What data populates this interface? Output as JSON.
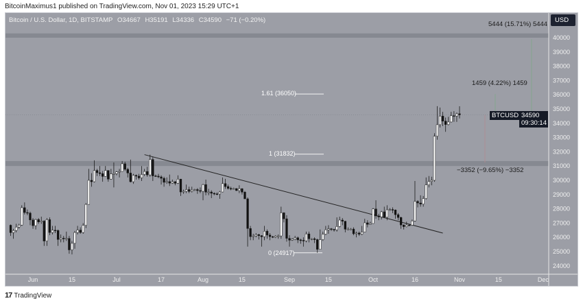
{
  "header": {
    "published": "BitcoinMaximus1 published on TradingView.com, Nov 01, 2023 15:29 UTC+1"
  },
  "legend": {
    "symbol": "Bitcoin / U.S. Dollar, 1D, BITSTAMP",
    "o": "O34667",
    "h": "H35191",
    "l": "L34336",
    "c": "C34590",
    "change": "−71 (−0.20%)"
  },
  "currency": "USD",
  "price_tag": {
    "symbol": "BTCUSD",
    "price": "34590",
    "countdown": "09:30:14"
  },
  "footer": {
    "brand": "TradingView"
  },
  "annotations": {
    "fib": [
      {
        "label": "1.61 (36050)",
        "value": 36050
      },
      {
        "label": "1 (31832)",
        "value": 31832
      },
      {
        "label": "0 (24917)",
        "value": 24917
      }
    ],
    "measure_up_1": "5444 (15.71%) 5444",
    "measure_up_2": "1459 (4.22%) 1459",
    "measure_down": "−3352 (−9.65%) −3352",
    "resistance_zones": [
      [
        40000,
        40300
      ],
      [
        31000,
        31350
      ]
    ],
    "trendline": [
      [
        "Jul 11",
        31800
      ],
      [
        "Oct 26",
        26300
      ]
    ]
  },
  "colors": {
    "background": "#9c9ea6",
    "up": "#ffffff",
    "down": "#111111",
    "zone": "#7f8189"
  },
  "chart_data": {
    "type": "candlestick",
    "title": "Bitcoin / U.S. Dollar, 1D, BITSTAMP",
    "ylim": [
      23500,
      41500
    ],
    "yticks": [
      24000,
      25000,
      26000,
      27000,
      28000,
      29000,
      30000,
      31000,
      32000,
      33000,
      34000,
      35000,
      36000,
      37000,
      38000,
      39000,
      40000
    ],
    "xticks": [
      [
        "Jun",
        "Jun 1"
      ],
      [
        "15",
        "Jun 15"
      ],
      [
        "Jul",
        "Jul 1"
      ],
      [
        "17",
        "Jul 17"
      ],
      [
        "Aug",
        "Aug 1"
      ],
      [
        "15",
        "Aug 15"
      ],
      [
        "Sep",
        "Sep 1"
      ],
      [
        "15",
        "Sep 15"
      ],
      [
        "Oct",
        "Oct 1"
      ],
      [
        "16",
        "Oct 16"
      ],
      [
        "Nov",
        "Nov 1"
      ],
      [
        "15",
        "Nov 15"
      ],
      [
        "Dec",
        "Dec 1"
      ]
    ],
    "candles": [
      [
        "May 24",
        26850,
        26900,
        26100,
        26330
      ],
      [
        "May 25",
        26330,
        26600,
        25900,
        26480
      ],
      [
        "May 26",
        26480,
        26950,
        26350,
        26720
      ],
      [
        "May 27",
        26720,
        26950,
        26600,
        26860
      ],
      [
        "May 28",
        26860,
        28250,
        26800,
        28080
      ],
      [
        "May 29",
        28080,
        28450,
        27600,
        27740
      ],
      [
        "May 30",
        27740,
        27950,
        27550,
        27700
      ],
      [
        "May 31",
        27700,
        27800,
        26850,
        27220
      ],
      [
        "Jun 1",
        27220,
        27350,
        26600,
        26820
      ],
      [
        "Jun 2",
        26820,
        27300,
        26550,
        27250
      ],
      [
        "Jun 3",
        27250,
        27350,
        26950,
        27080
      ],
      [
        "Jun 4",
        27080,
        27450,
        26950,
        27140
      ],
      [
        "Jun 5",
        27140,
        27200,
        25400,
        25740
      ],
      [
        "Jun 6",
        25740,
        27350,
        25400,
        27240
      ],
      [
        "Jun 7",
        27240,
        27400,
        26150,
        26340
      ],
      [
        "Jun 8",
        26340,
        26800,
        26200,
        26500
      ],
      [
        "Jun 9",
        26500,
        26800,
        26300,
        26480
      ],
      [
        "Jun 10",
        26480,
        26550,
        25400,
        25850
      ],
      [
        "Jun 11",
        25850,
        26200,
        25650,
        25940
      ],
      [
        "Jun 12",
        25940,
        26100,
        25650,
        25900
      ],
      [
        "Jun 13",
        25900,
        26400,
        25750,
        25920
      ],
      [
        "Jun 14",
        25920,
        26100,
        24850,
        25120
      ],
      [
        "Jun 15",
        25120,
        25750,
        24800,
        25580
      ],
      [
        "Jun 16",
        25580,
        26450,
        25200,
        26340
      ],
      [
        "Jun 17",
        26340,
        26800,
        26200,
        26510
      ],
      [
        "Jun 18",
        26510,
        26700,
        26250,
        26340
      ],
      [
        "Jun 19",
        26340,
        27000,
        26250,
        26840
      ],
      [
        "Jun 20",
        26840,
        28400,
        26650,
        28310
      ],
      [
        "Jun 21",
        28310,
        30800,
        28300,
        30000
      ],
      [
        "Jun 22",
        30000,
        30500,
        29550,
        29900
      ],
      [
        "Jun 23",
        29900,
        31400,
        29850,
        30690
      ],
      [
        "Jun 24",
        30690,
        30800,
        30300,
        30530
      ],
      [
        "Jun 25",
        30530,
        31000,
        30300,
        30470
      ],
      [
        "Jun 26",
        30470,
        30650,
        29900,
        30270
      ],
      [
        "Jun 27",
        30270,
        31000,
        30250,
        30690
      ],
      [
        "Jun 28",
        30690,
        30700,
        29900,
        30080
      ],
      [
        "Jun 29",
        30080,
        30800,
        30050,
        30450
      ],
      [
        "Jun 30",
        30450,
        31250,
        29500,
        30470
      ],
      [
        "Jul 1",
        30470,
        30650,
        30350,
        30590
      ],
      [
        "Jul 2",
        30590,
        30800,
        30200,
        30620
      ],
      [
        "Jul 3",
        30620,
        31350,
        30600,
        31160
      ],
      [
        "Jul 4",
        31160,
        31300,
        30650,
        30770
      ],
      [
        "Jul 5",
        30770,
        30880,
        30200,
        30510
      ],
      [
        "Jul 6",
        30510,
        31450,
        29850,
        29900
      ],
      [
        "Jul 7",
        29900,
        30450,
        29750,
        30350
      ],
      [
        "Jul 8",
        30350,
        30400,
        30050,
        30290
      ],
      [
        "Jul 9",
        30290,
        30450,
        30050,
        30170
      ],
      [
        "Jul 10",
        30170,
        31000,
        29950,
        30410
      ],
      [
        "Jul 11",
        30410,
        30800,
        30300,
        30620
      ],
      [
        "Jul 12",
        30620,
        30950,
        30250,
        30380
      ],
      [
        "Jul 13",
        30380,
        31800,
        30250,
        31460
      ],
      [
        "Jul 14",
        31460,
        31650,
        29950,
        30310
      ],
      [
        "Jul 15",
        30310,
        30400,
        30250,
        30290
      ],
      [
        "Jul 16",
        30290,
        30450,
        30150,
        30240
      ],
      [
        "Jul 17",
        30240,
        30350,
        29700,
        30140
      ],
      [
        "Jul 18",
        30140,
        30250,
        29550,
        29860
      ],
      [
        "Jul 19",
        29860,
        30200,
        29750,
        29910
      ],
      [
        "Jul 20",
        29910,
        30400,
        29600,
        29800
      ],
      [
        "Jul 21",
        29800,
        30050,
        29750,
        29900
      ],
      [
        "Jul 22",
        29900,
        29950,
        29650,
        29790
      ],
      [
        "Jul 23",
        29790,
        30350,
        29750,
        30080
      ],
      [
        "Jul 24",
        30080,
        30100,
        28900,
        29180
      ],
      [
        "Jul 25",
        29180,
        29350,
        29050,
        29230
      ],
      [
        "Jul 26",
        29230,
        29700,
        29100,
        29350
      ],
      [
        "Jul 27",
        29350,
        29550,
        29100,
        29220
      ],
      [
        "Jul 28",
        29220,
        29550,
        29150,
        29310
      ],
      [
        "Jul 29",
        29310,
        29400,
        29250,
        29350
      ],
      [
        "Jul 30",
        29350,
        29450,
        29050,
        29280
      ],
      [
        "Jul 31",
        29280,
        29500,
        29100,
        29230
      ],
      [
        "Aug 1",
        29230,
        29750,
        28600,
        29700
      ],
      [
        "Aug 2",
        29700,
        30050,
        28950,
        29170
      ],
      [
        "Aug 3",
        29170,
        29400,
        28950,
        29180
      ],
      [
        "Aug 4",
        29180,
        29300,
        28750,
        29090
      ],
      [
        "Aug 5",
        29090,
        29150,
        28950,
        29050
      ],
      [
        "Aug 6",
        29050,
        29150,
        28950,
        29040
      ],
      [
        "Aug 7",
        29040,
        29250,
        28700,
        29180
      ],
      [
        "Aug 8",
        29180,
        30200,
        29150,
        29770
      ],
      [
        "Aug 9",
        29770,
        30100,
        29400,
        29560
      ],
      [
        "Aug 10",
        29560,
        29700,
        29350,
        29430
      ],
      [
        "Aug 11",
        29430,
        29550,
        29300,
        29400
      ],
      [
        "Aug 12",
        29400,
        29480,
        29350,
        29420
      ],
      [
        "Aug 13",
        29420,
        29450,
        29250,
        29280
      ],
      [
        "Aug 14",
        29280,
        29650,
        29100,
        29410
      ],
      [
        "Aug 15",
        29410,
        29450,
        29000,
        29170
      ],
      [
        "Aug 16",
        29170,
        29250,
        28700,
        28700
      ],
      [
        "Aug 17",
        28700,
        28800,
        25350,
        26620
      ],
      [
        "Aug 18",
        26620,
        26800,
        25800,
        26050
      ],
      [
        "Aug 19",
        26050,
        26250,
        25800,
        26100
      ],
      [
        "Aug 20",
        26100,
        26300,
        26000,
        26190
      ],
      [
        "Aug 21",
        26190,
        26250,
        25850,
        26120
      ],
      [
        "Aug 22",
        26120,
        26150,
        25350,
        26040
      ],
      [
        "Aug 23",
        26040,
        26800,
        25800,
        26430
      ],
      [
        "Aug 24",
        26430,
        26550,
        25900,
        26160
      ],
      [
        "Aug 25",
        26160,
        26300,
        25800,
        26050
      ],
      [
        "Aug 26",
        26050,
        26100,
        25950,
        26010
      ],
      [
        "Aug 27",
        26010,
        26150,
        25950,
        26090
      ],
      [
        "Aug 28",
        26090,
        26200,
        25900,
        26100
      ],
      [
        "Aug 29",
        26100,
        28150,
        25900,
        27720
      ],
      [
        "Aug 30",
        27720,
        27750,
        27050,
        27300
      ],
      [
        "Aug 31",
        27300,
        27550,
        25700,
        25930
      ],
      [
        "Sep 1",
        25930,
        26150,
        25350,
        25800
      ],
      [
        "Sep 2",
        25800,
        25950,
        25750,
        25870
      ],
      [
        "Sep 3",
        25870,
        26100,
        25800,
        25970
      ],
      [
        "Sep 4",
        25970,
        26050,
        25600,
        25820
      ],
      [
        "Sep 5",
        25820,
        25900,
        25550,
        25790
      ],
      [
        "Sep 6",
        25790,
        26000,
        25350,
        25750
      ],
      [
        "Sep 7",
        25750,
        26400,
        25650,
        26240
      ],
      [
        "Sep 8",
        26240,
        26400,
        25650,
        25900
      ],
      [
        "Sep 9",
        25900,
        25950,
        25800,
        25900
      ],
      [
        "Sep 10",
        25900,
        26000,
        25600,
        25840
      ],
      [
        "Sep 11",
        25840,
        25900,
        24917,
        25160
      ],
      [
        "Sep 12",
        25160,
        26550,
        25150,
        25840
      ],
      [
        "Sep 13",
        25840,
        26400,
        25750,
        26220
      ],
      [
        "Sep 14",
        26220,
        26800,
        26150,
        26530
      ],
      [
        "Sep 15",
        26530,
        26850,
        26250,
        26600
      ],
      [
        "Sep 16",
        26600,
        26650,
        26450,
        26560
      ],
      [
        "Sep 17",
        26560,
        26600,
        26400,
        26530
      ],
      [
        "Sep 18",
        26530,
        27400,
        26400,
        26760
      ],
      [
        "Sep 19",
        26760,
        27450,
        26700,
        27210
      ],
      [
        "Sep 20",
        27210,
        27350,
        26850,
        27130
      ],
      [
        "Sep 21",
        27130,
        27150,
        26350,
        26570
      ],
      [
        "Sep 22",
        26570,
        26700,
        26500,
        26580
      ],
      [
        "Sep 23",
        26580,
        26650,
        26500,
        26580
      ],
      [
        "Sep 24",
        26580,
        26700,
        26150,
        26250
      ],
      [
        "Sep 25",
        26250,
        26400,
        26000,
        26300
      ],
      [
        "Sep 26",
        26300,
        26400,
        26100,
        26220
      ],
      [
        "Sep 27",
        26220,
        26800,
        26150,
        26370
      ],
      [
        "Sep 28",
        26370,
        27300,
        26350,
        27020
      ],
      [
        "Sep 29",
        27020,
        27200,
        26700,
        26910
      ],
      [
        "Sep 30",
        26910,
        27100,
        26900,
        26970
      ],
      [
        "Oct 1",
        26970,
        28050,
        26950,
        27990
      ],
      [
        "Oct 2",
        27990,
        28600,
        27300,
        27500
      ],
      [
        "Oct 3",
        27500,
        27650,
        27200,
        27430
      ],
      [
        "Oct 4",
        27430,
        27850,
        27250,
        27790
      ],
      [
        "Oct 5",
        27790,
        28150,
        27350,
        27410
      ],
      [
        "Oct 6",
        27410,
        28250,
        27200,
        27930
      ],
      [
        "Oct 7",
        27930,
        28050,
        27850,
        27950
      ],
      [
        "Oct 8",
        27950,
        28100,
        27700,
        27920
      ],
      [
        "Oct 9",
        27920,
        27950,
        27300,
        27590
      ],
      [
        "Oct 10",
        27590,
        27700,
        27200,
        27390
      ],
      [
        "Oct 11",
        27390,
        27450,
        26600,
        26870
      ],
      [
        "Oct 12",
        26870,
        26900,
        26550,
        26750
      ],
      [
        "Oct 13",
        26750,
        27100,
        26700,
        26860
      ],
      [
        "Oct 14",
        26860,
        26950,
        26800,
        26850
      ],
      [
        "Oct 15",
        26850,
        27250,
        26800,
        27150
      ],
      [
        "Oct 16",
        27150,
        29950,
        27100,
        28520
      ],
      [
        "Oct 17",
        28520,
        28600,
        28100,
        28410
      ],
      [
        "Oct 18",
        28410,
        28950,
        28150,
        28330
      ],
      [
        "Oct 19",
        28330,
        28900,
        28150,
        28720
      ],
      [
        "Oct 20",
        28720,
        30200,
        28650,
        29680
      ],
      [
        "Oct 21",
        29680,
        30300,
        29500,
        29920
      ],
      [
        "Oct 22",
        29920,
        30250,
        29650,
        30000
      ],
      [
        "Oct 23",
        30000,
        33300,
        29900,
        33090
      ],
      [
        "Oct 24",
        33090,
        35200,
        32850,
        33900
      ],
      [
        "Oct 25",
        33900,
        35100,
        33700,
        34500
      ],
      [
        "Oct 26",
        34500,
        34800,
        33800,
        34150
      ],
      [
        "Oct 27",
        34150,
        34400,
        33400,
        33910
      ],
      [
        "Oct 28",
        33910,
        34450,
        33850,
        34090
      ],
      [
        "Oct 29",
        34090,
        34800,
        34050,
        34530
      ],
      [
        "Oct 30",
        34530,
        34850,
        34100,
        34500
      ],
      [
        "Oct 31",
        34500,
        34750,
        34100,
        34670
      ],
      [
        "Nov 1",
        34667,
        35191,
        34336,
        34590
      ]
    ]
  }
}
